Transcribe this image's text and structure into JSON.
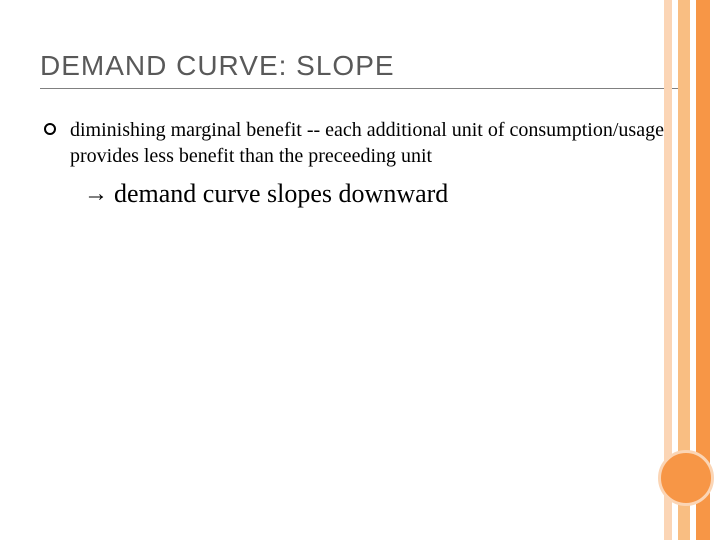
{
  "slide": {
    "title": "DEMAND CURVE: SLOPE",
    "bullet": "diminishing marginal benefit -- each additional unit of consumption/usage provides less benefit than the preceeding unit",
    "arrow": "→",
    "subpoint": "demand curve slopes downward"
  },
  "theme": {
    "title_color": "#595959",
    "text_color": "#000000",
    "stripe_light": "#fbd5b5",
    "stripe_mid": "#f9be82",
    "stripe_dark": "#f79646",
    "background": "#ffffff",
    "title_fontsize": 28,
    "body_fontsize": 20,
    "sub_fontsize": 26
  }
}
